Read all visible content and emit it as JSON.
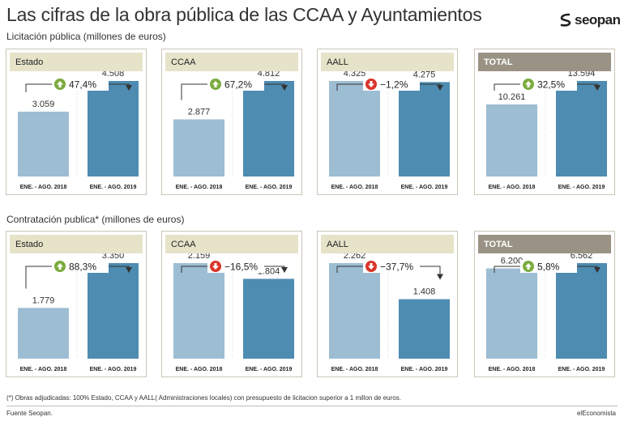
{
  "title": "Las cifras de la obra pública de las CCAA y Ayuntamientos",
  "logo_text": "seopan",
  "colors": {
    "bar_2018": "#9dbdd3",
    "bar_2019": "#4e8cb2",
    "up": "#7aab3c",
    "down": "#d9352a",
    "header": "#e6e3c9",
    "header_total": "#9a9385"
  },
  "sections": [
    {
      "label": "Licitación pública (millones de euros)"
    },
    {
      "label": "Contratación publica* (millones de euros)"
    }
  ],
  "chart_data": [
    {
      "type": "bar",
      "section": "Licitación pública (millones de euros)",
      "title": "Estado",
      "categories": [
        "ENE. - AGO. 2018",
        "ENE. - AGO. 2019"
      ],
      "values": [
        3059,
        4508
      ],
      "value_labels": [
        "3.059",
        "4.508"
      ],
      "change": "47,4%",
      "direction": "up"
    },
    {
      "type": "bar",
      "section": "Licitación pública (millones de euros)",
      "title": "CCAA",
      "categories": [
        "ENE. - AGO. 2018",
        "ENE. - AGO. 2019"
      ],
      "values": [
        2877,
        4812
      ],
      "value_labels": [
        "2.877",
        "4.812"
      ],
      "change": "67,2%",
      "direction": "up"
    },
    {
      "type": "bar",
      "section": "Licitación pública (millones de euros)",
      "title": "AALL",
      "categories": [
        "ENE. - AGO. 2018",
        "ENE. - AGO. 2019"
      ],
      "values": [
        4325,
        4275
      ],
      "value_labels": [
        "4.325",
        "4.275"
      ],
      "change": "−1,2%",
      "direction": "down"
    },
    {
      "type": "bar",
      "section": "Licitación pública (millones de euros)",
      "title": "TOTAL",
      "categories": [
        "ENE. - AGO. 2018",
        "ENE. - AGO. 2019"
      ],
      "values": [
        10261,
        13594
      ],
      "value_labels": [
        "10.261",
        "13.594"
      ],
      "change": "32,5%",
      "direction": "up",
      "total": true
    },
    {
      "type": "bar",
      "section": "Contratación publica* (millones de euros)",
      "title": "Estado",
      "categories": [
        "ENE. - AGO. 2018",
        "ENE. - AGO. 2019"
      ],
      "values": [
        1779,
        3350
      ],
      "value_labels": [
        "1.779",
        "3.350"
      ],
      "change": "88,3%",
      "direction": "up"
    },
    {
      "type": "bar",
      "section": "Contratación publica* (millones de euros)",
      "title": "CCAA",
      "categories": [
        "ENE. - AGO. 2018",
        "ENE. - AGO. 2019"
      ],
      "values": [
        2159,
        1804
      ],
      "value_labels": [
        "2.159",
        "1.804"
      ],
      "change": "−16,5%",
      "direction": "down"
    },
    {
      "type": "bar",
      "section": "Contratación publica* (millones de euros)",
      "title": "AALL",
      "categories": [
        "ENE. - AGO. 2018",
        "ENE. - AGO. 2019"
      ],
      "values": [
        2262,
        1408
      ],
      "value_labels": [
        "2.262",
        "1.408"
      ],
      "change": "−37,7%",
      "direction": "down"
    },
    {
      "type": "bar",
      "section": "Contratación publica* (millones de euros)",
      "title": "TOTAL",
      "categories": [
        "ENE. - AGO. 2018",
        "ENE. - AGO. 2019"
      ],
      "values": [
        6200,
        6562
      ],
      "value_labels": [
        "6.200",
        "6.562"
      ],
      "change": "5,8%",
      "direction": "up",
      "total": true
    }
  ],
  "footnote": "(*) Obras adjudicadas: 100% Estado, CCAA y AALL( Administraciones locales) con presupuesto de licitacion superior a 1 millon de euros.",
  "source": "Fuente Seopan.",
  "credit": "elEconomista"
}
